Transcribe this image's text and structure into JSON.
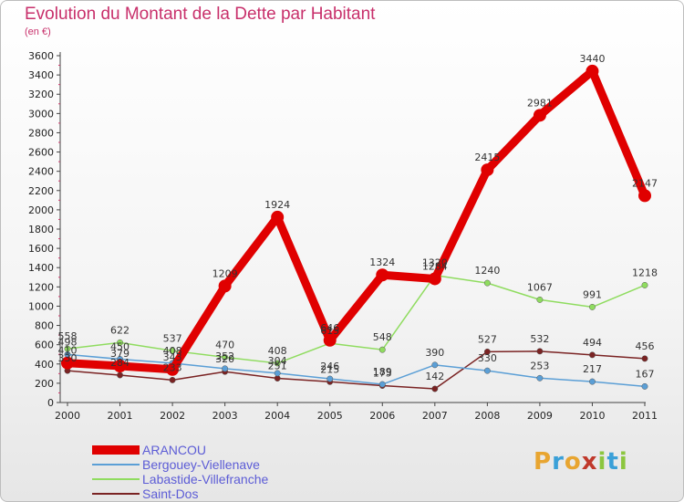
{
  "header": {
    "title": "Evolution du Montant de la Dette par Habitant",
    "subtitle": "(en €)"
  },
  "brand": {
    "letters": [
      "P",
      "r",
      "o",
      "x",
      "i",
      "t",
      "i"
    ],
    "colors": [
      "#e8a530",
      "#3aa0d8",
      "#e8a530",
      "#c0392b",
      "#8cc63f",
      "#3aa0d8",
      "#8cc63f"
    ]
  },
  "chart_data": {
    "type": "line",
    "title": "Evolution du Montant de la Dette par Habitant",
    "ylabel": "(en €)",
    "x": [
      "2000",
      "2001",
      "2002",
      "2003",
      "2004",
      "2005",
      "2006",
      "2007",
      "2008",
      "2009",
      "2010",
      "2011"
    ],
    "ylim": [
      0,
      3600
    ],
    "yticks": [
      0,
      200,
      400,
      600,
      800,
      1000,
      1200,
      1400,
      1600,
      1800,
      2000,
      2200,
      2400,
      2600,
      2800,
      3000,
      3200,
      3400,
      3600
    ],
    "grid": false,
    "legend_position": "bottom-left",
    "series": [
      {
        "name": "ARANCOU",
        "color": "#e00000",
        "values": [
          410,
          379,
          343,
          1209,
          1924,
          646,
          1324,
          1284,
          2415,
          2981,
          3440,
          2147
        ]
      },
      {
        "name": "Bergouey-Viellenave",
        "color": "#5b9fd6",
        "values": [
          498,
          450,
          408,
          352,
          304,
          246,
          189,
          390,
          330,
          253,
          217,
          167
        ]
      },
      {
        "name": "Labastide-Villefranche",
        "color": "#8fdc5f",
        "values": [
          558,
          622,
          537,
          470,
          408,
          615,
          548,
          1320,
          1240,
          1067,
          991,
          1218
        ]
      },
      {
        "name": "Saint-Dos",
        "color": "#7a2323",
        "values": [
          330,
          284,
          233,
          320,
          251,
          215,
          175,
          142,
          527,
          532,
          494,
          456
        ]
      }
    ]
  }
}
